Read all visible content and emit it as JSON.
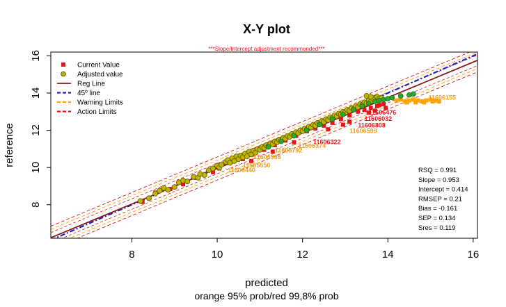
{
  "chart_data": {
    "type": "scatter",
    "title": "X-Y plot",
    "subtitle": "***Slope/Intercept adjustment recommended***",
    "xlabel": "predicted",
    "xlabel2": "orange 95% prob/red 99,8% prob",
    "ylabel": "reference",
    "xlim": [
      6.1,
      16.1
    ],
    "ylim": [
      6.2,
      16.2
    ],
    "xticks": [
      "8",
      "10",
      "12",
      "14",
      "16"
    ],
    "yticks": [
      "8",
      "10",
      "12",
      "14",
      "16"
    ],
    "grid": false,
    "legend_position": "top-left",
    "legend": [
      {
        "label": "Current Value",
        "kind": "square",
        "color": "#e8141b"
      },
      {
        "label": "Adjusted value",
        "kind": "circle",
        "color": "#b0b000"
      },
      {
        "label": "Reg Line",
        "kind": "line",
        "color": "#8b1a1a"
      },
      {
        "label": "45º line",
        "kind": "dashed",
        "color": "#1f1fbf"
      },
      {
        "label": "Warning Limits",
        "kind": "dashed",
        "color": "#ffa500"
      },
      {
        "label": "Action Limits",
        "kind": "dashed",
        "color": "#e8141b"
      }
    ],
    "colors": {
      "current": "#e8141b",
      "adjusted_fill": "#b8b800",
      "adjusted_green": "#2aa82a",
      "reg_line": "#8b1a1a",
      "identity_line": "#1f1fbf",
      "warning": "#ffa500",
      "action": "#e8141b",
      "subtitle": "#e8141b",
      "label_orange": "#f0a020",
      "label_red": "#e8141b"
    },
    "regression": {
      "slope": 0.953,
      "intercept": 0.414
    },
    "stats": [
      "RSQ = 0.991",
      "Slope = 0.953",
      "Intercept = 0.414",
      "RMSEP = 0.21",
      "Bias = -0.161",
      "SEP = 0.134",
      "Sres = 0.119"
    ],
    "series": [
      {
        "name": "Current Value",
        "points": [
          [
            8.25,
            8.15
          ],
          [
            8.55,
            8.65
          ],
          [
            8.9,
            8.85
          ],
          [
            9.2,
            9.1
          ],
          [
            9.5,
            9.45
          ],
          [
            9.9,
            9.75
          ],
          [
            10.05,
            9.95
          ],
          [
            10.3,
            10.25
          ],
          [
            10.6,
            10.45
          ],
          [
            10.85,
            10.7
          ],
          [
            11.1,
            10.95
          ],
          [
            11.35,
            11.2
          ],
          [
            11.6,
            11.45
          ],
          [
            11.85,
            11.7
          ],
          [
            12.1,
            11.95
          ],
          [
            12.3,
            12.1
          ],
          [
            12.5,
            12.25
          ],
          [
            12.7,
            12.4
          ],
          [
            12.9,
            12.6
          ],
          [
            13.1,
            12.8
          ],
          [
            13.3,
            13.0
          ],
          [
            13.45,
            13.1
          ],
          [
            13.55,
            12.95
          ],
          [
            13.6,
            13.2
          ],
          [
            13.7,
            13.05
          ],
          [
            13.75,
            13.3
          ],
          [
            13.8,
            13.35
          ],
          [
            13.9,
            13.4
          ],
          [
            13.95,
            13.2
          ],
          [
            12.95,
            12.3
          ],
          [
            13.1,
            12.45
          ],
          [
            12.6,
            12.05
          ],
          [
            11.8,
            11.35
          ],
          [
            11.3,
            10.85
          ],
          [
            10.8,
            10.35
          ]
        ]
      },
      {
        "name": "Adjusted value",
        "points": [
          [
            8.2,
            8.2
          ],
          [
            8.4,
            8.35
          ],
          [
            8.55,
            8.6
          ],
          [
            8.65,
            8.75
          ],
          [
            8.75,
            8.9
          ],
          [
            8.85,
            8.8
          ],
          [
            9.0,
            8.95
          ],
          [
            9.1,
            9.2
          ],
          [
            9.2,
            9.3
          ],
          [
            9.3,
            9.25
          ],
          [
            9.45,
            9.5
          ],
          [
            9.55,
            9.45
          ],
          [
            9.6,
            9.65
          ],
          [
            9.7,
            9.6
          ],
          [
            9.8,
            9.85
          ],
          [
            9.9,
            9.95
          ],
          [
            10.0,
            10.1
          ],
          [
            10.05,
            10.0
          ],
          [
            10.1,
            10.15
          ],
          [
            10.2,
            10.3
          ],
          [
            10.25,
            10.4
          ],
          [
            10.3,
            10.25
          ],
          [
            10.35,
            10.5
          ],
          [
            10.4,
            10.35
          ],
          [
            10.45,
            10.6
          ],
          [
            10.5,
            10.45
          ],
          [
            10.55,
            10.65
          ],
          [
            10.6,
            10.55
          ],
          [
            10.65,
            10.75
          ],
          [
            10.7,
            10.6
          ],
          [
            10.75,
            10.85
          ],
          [
            10.8,
            10.7
          ],
          [
            10.85,
            10.9
          ],
          [
            10.9,
            10.8
          ],
          [
            10.95,
            11.0
          ],
          [
            11.0,
            10.95
          ],
          [
            11.05,
            11.1
          ],
          [
            11.1,
            11.05
          ],
          [
            11.15,
            11.2
          ],
          [
            11.2,
            11.15
          ],
          [
            11.25,
            11.3
          ],
          [
            11.3,
            11.25
          ],
          [
            11.35,
            11.4
          ],
          [
            11.4,
            11.35
          ],
          [
            11.45,
            11.5
          ],
          [
            11.5,
            11.45
          ],
          [
            11.55,
            11.6
          ],
          [
            11.6,
            11.55
          ],
          [
            11.65,
            11.7
          ],
          [
            11.7,
            11.65
          ],
          [
            11.75,
            11.8
          ],
          [
            11.8,
            11.75
          ],
          [
            11.85,
            11.9
          ],
          [
            11.9,
            11.85
          ],
          [
            11.95,
            12.0
          ],
          [
            12.0,
            11.95
          ],
          [
            12.05,
            12.1
          ],
          [
            12.1,
            12.05
          ],
          [
            12.15,
            12.2
          ],
          [
            12.2,
            12.15
          ],
          [
            12.25,
            12.3
          ],
          [
            12.3,
            12.25
          ],
          [
            12.35,
            12.4
          ],
          [
            12.4,
            12.35
          ],
          [
            12.45,
            12.5
          ],
          [
            12.5,
            12.45
          ],
          [
            12.55,
            12.6
          ],
          [
            12.6,
            12.55
          ],
          [
            12.65,
            12.7
          ],
          [
            12.7,
            12.65
          ],
          [
            12.75,
            12.8
          ],
          [
            12.8,
            12.75
          ],
          [
            12.85,
            12.9
          ],
          [
            12.9,
            12.85
          ],
          [
            12.95,
            13.0
          ],
          [
            13.0,
            12.95
          ],
          [
            13.05,
            13.1
          ],
          [
            13.1,
            13.05
          ],
          [
            13.15,
            13.2
          ],
          [
            13.2,
            13.15
          ],
          [
            13.25,
            13.3
          ],
          [
            13.3,
            13.25
          ],
          [
            13.35,
            13.4
          ],
          [
            13.4,
            13.35
          ],
          [
            13.45,
            13.5
          ],
          [
            13.5,
            13.45
          ],
          [
            13.55,
            13.6
          ],
          [
            13.6,
            13.55
          ],
          [
            13.65,
            13.7
          ],
          [
            13.7,
            13.75
          ],
          [
            13.75,
            13.8
          ],
          [
            13.8,
            13.7
          ],
          [
            13.85,
            13.75
          ],
          [
            13.5,
            13.85
          ],
          [
            13.6,
            13.8
          ]
        ]
      },
      {
        "name": "Adjusted value (in limits)",
        "points": [
          [
            11.2,
            11.1
          ],
          [
            11.5,
            11.4
          ],
          [
            11.8,
            11.7
          ],
          [
            12.1,
            12.0
          ],
          [
            12.4,
            12.3
          ],
          [
            12.7,
            12.6
          ],
          [
            12.95,
            12.85
          ],
          [
            13.2,
            13.1
          ],
          [
            13.4,
            13.3
          ],
          [
            13.55,
            13.45
          ],
          [
            13.7,
            13.55
          ],
          [
            13.8,
            13.6
          ],
          [
            13.9,
            13.65
          ],
          [
            14.0,
            13.7
          ],
          [
            14.1,
            13.75
          ],
          [
            14.3,
            13.85
          ],
          [
            14.5,
            13.9
          ],
          [
            14.6,
            13.95
          ]
        ]
      },
      {
        "name": "Warning outliers",
        "points": [
          [
            14.2,
            13.6
          ],
          [
            14.3,
            13.65
          ],
          [
            14.4,
            13.55
          ],
          [
            14.5,
            13.6
          ],
          [
            14.6,
            13.65
          ],
          [
            14.7,
            13.6
          ],
          [
            14.8,
            13.55
          ],
          [
            14.9,
            13.6
          ],
          [
            15.0,
            13.65
          ],
          [
            15.1,
            13.6
          ],
          [
            15.2,
            13.55
          ],
          [
            14.45,
            13.5
          ],
          [
            14.65,
            13.5
          ],
          [
            14.85,
            13.5
          ],
          [
            15.05,
            13.55
          ]
        ]
      }
    ],
    "annotations": [
      {
        "text": "11606476",
        "x": 13.55,
        "y": 12.85,
        "color": "red"
      },
      {
        "text": "11606032",
        "x": 13.45,
        "y": 12.5,
        "color": "red"
      },
      {
        "text": "11606808",
        "x": 13.3,
        "y": 12.15,
        "color": "red"
      },
      {
        "text": "11606599",
        "x": 13.1,
        "y": 11.85,
        "color": "orange"
      },
      {
        "text": "11606322",
        "x": 12.25,
        "y": 11.25,
        "color": "red"
      },
      {
        "text": "11606374",
        "x": 11.9,
        "y": 11.05,
        "color": "orange"
      },
      {
        "text": "11605792",
        "x": 11.35,
        "y": 10.8,
        "color": "orange"
      },
      {
        "text": "11606986",
        "x": 10.85,
        "y": 10.45,
        "color": "orange"
      },
      {
        "text": "11605550",
        "x": 10.6,
        "y": 10.0,
        "color": "orange"
      },
      {
        "text": "11606440",
        "x": 10.25,
        "y": 9.75,
        "color": "orange"
      },
      {
        "text": "11606155",
        "x": 14.95,
        "y": 13.65,
        "color": "orange"
      }
    ]
  }
}
